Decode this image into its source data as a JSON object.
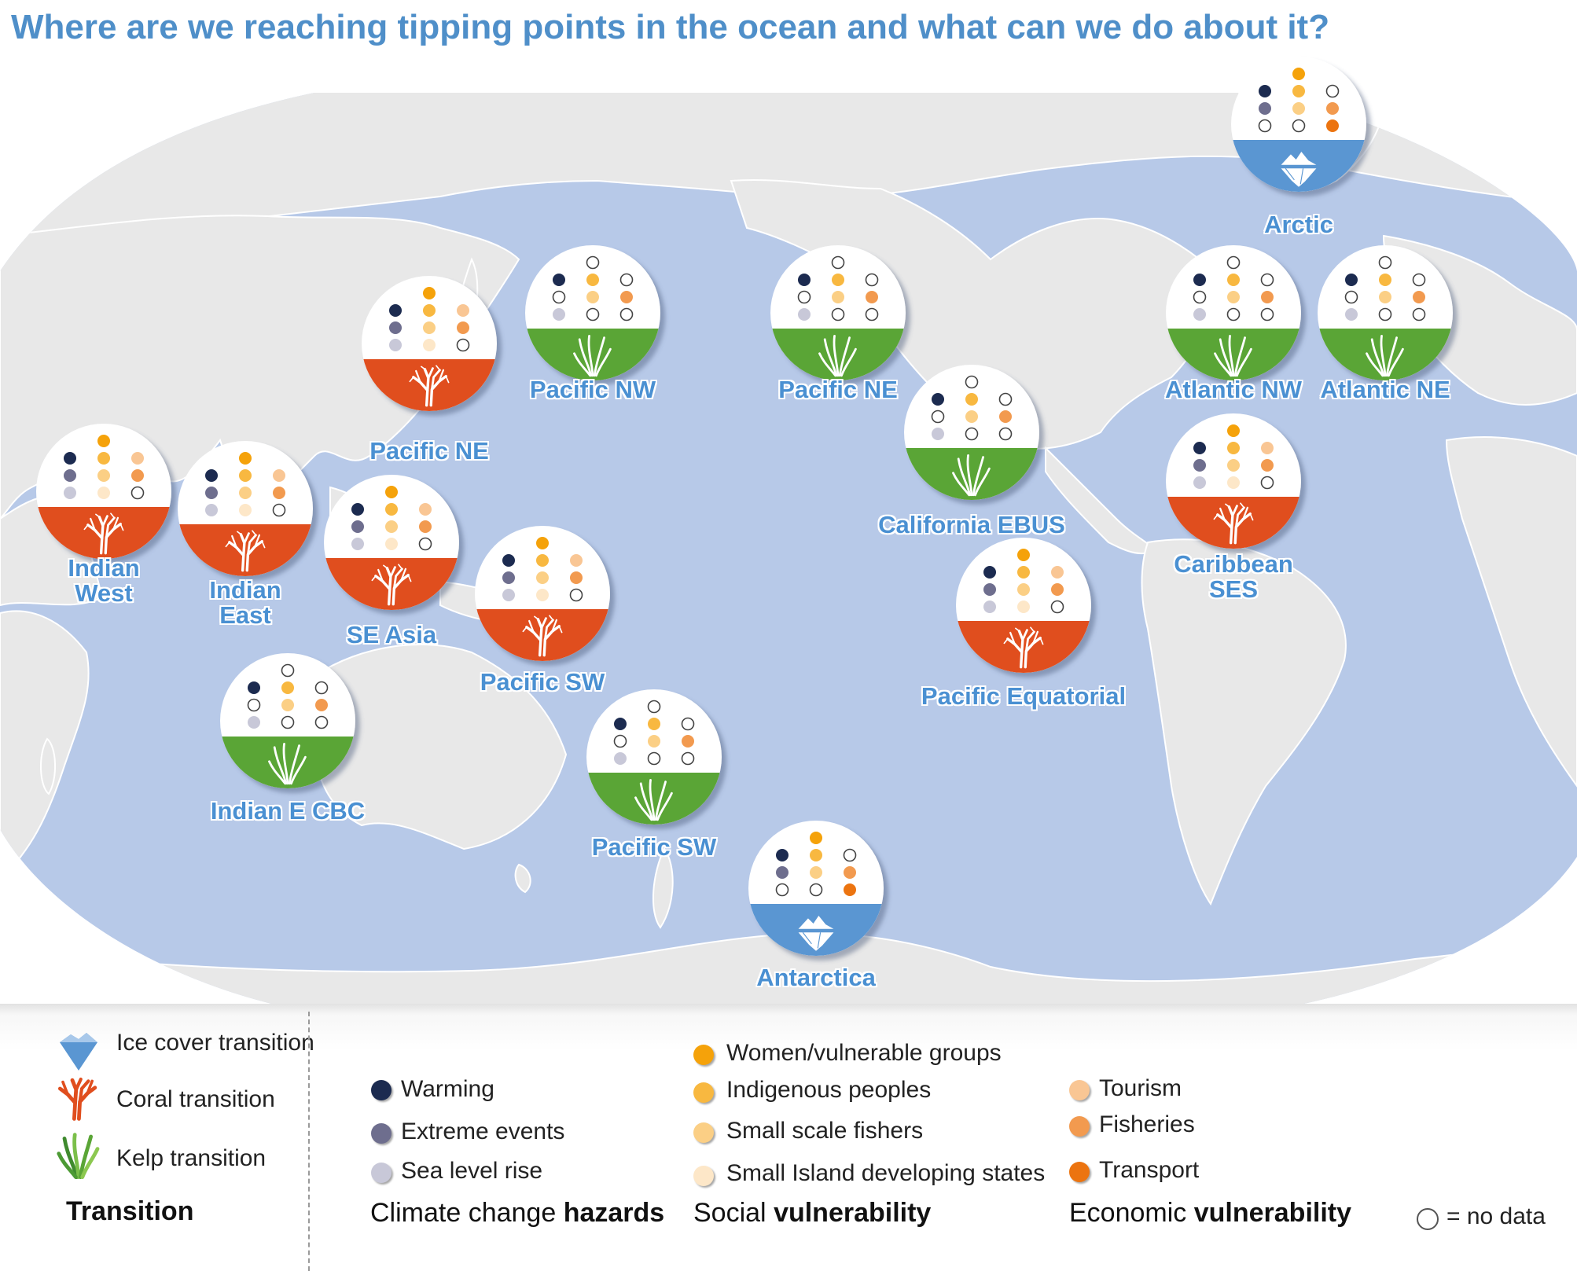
{
  "title": "Where are we reaching tipping points in the ocean and what can we do about it?",
  "colors": {
    "ocean": "#b7c9e8",
    "land": "#e8e8e8",
    "ice": "#5a96d2",
    "coral": "#e04e1e",
    "kelp": "#5aa536",
    "label": "#4a90d2",
    "warming": "#1c2b50",
    "extreme_events": "#6e6e8e",
    "sea_level_rise": "#c8c8d8",
    "women_vulnerable": "#f5a20a",
    "indigenous": "#f8b840",
    "small_scale_fishers": "#fbcf85",
    "sids": "#fde7c8",
    "tourism": "#f9c694",
    "fisheries": "#f29a4f",
    "transport": "#ec7410"
  },
  "regions": [
    {
      "id": "arctic",
      "label": [
        "Arctic"
      ],
      "transition": "ice",
      "indicators": {
        "women": 1,
        "indigenous": 1,
        "fishers": 1,
        "sids": 0,
        "warming": 1,
        "extreme": 1,
        "slr": 0,
        "tourism": 0,
        "fisheries": 1,
        "transport": 1
      }
    },
    {
      "id": "pacific-nw-kelp",
      "label": [
        "Pacific NW"
      ],
      "transition": "kelp",
      "indicators": {
        "women": 0,
        "indigenous": 1,
        "fishers": 1,
        "sids": 0,
        "warming": 1,
        "extreme": 0,
        "slr": 1,
        "tourism": 0,
        "fisheries": 1,
        "transport": 0
      }
    },
    {
      "id": "pacific-ne-kelp",
      "label": [
        "Pacific NE"
      ],
      "transition": "kelp",
      "indicators": {
        "women": 0,
        "indigenous": 1,
        "fishers": 1,
        "sids": 0,
        "warming": 1,
        "extreme": 0,
        "slr": 1,
        "tourism": 0,
        "fisheries": 1,
        "transport": 0
      }
    },
    {
      "id": "atlantic-nw",
      "label": [
        "Atlantic NW"
      ],
      "transition": "kelp",
      "indicators": {
        "women": 0,
        "indigenous": 1,
        "fishers": 1,
        "sids": 0,
        "warming": 1,
        "extreme": 0,
        "slr": 1,
        "tourism": 0,
        "fisheries": 1,
        "transport": 0
      }
    },
    {
      "id": "atlantic-ne",
      "label": [
        "Atlantic NE"
      ],
      "transition": "kelp",
      "indicators": {
        "women": 0,
        "indigenous": 1,
        "fishers": 1,
        "sids": 0,
        "warming": 1,
        "extreme": 0,
        "slr": 1,
        "tourism": 0,
        "fisheries": 1,
        "transport": 0
      }
    },
    {
      "id": "pacific-ne-coral",
      "label": [
        "Pacific NE"
      ],
      "transition": "coral",
      "indicators": {
        "women": 1,
        "indigenous": 1,
        "fishers": 1,
        "sids": 1,
        "warming": 1,
        "extreme": 1,
        "slr": 1,
        "tourism": 1,
        "fisheries": 1,
        "transport": 0
      }
    },
    {
      "id": "california-ebus",
      "label": [
        "California EBUS"
      ],
      "transition": "kelp",
      "indicators": {
        "women": 0,
        "indigenous": 1,
        "fishers": 1,
        "sids": 0,
        "warming": 1,
        "extreme": 0,
        "slr": 1,
        "tourism": 0,
        "fisheries": 1,
        "transport": 0
      }
    },
    {
      "id": "caribbean-ses",
      "label": [
        "Caribbean",
        "SES"
      ],
      "transition": "coral",
      "indicators": {
        "women": 1,
        "indigenous": 1,
        "fishers": 1,
        "sids": 1,
        "warming": 1,
        "extreme": 1,
        "slr": 1,
        "tourism": 1,
        "fisheries": 1,
        "transport": 0
      }
    },
    {
      "id": "indian-west",
      "label": [
        "Indian",
        "West"
      ],
      "transition": "coral",
      "indicators": {
        "women": 1,
        "indigenous": 1,
        "fishers": 1,
        "sids": 1,
        "warming": 1,
        "extreme": 1,
        "slr": 1,
        "tourism": 1,
        "fisheries": 1,
        "transport": 0
      }
    },
    {
      "id": "indian-east",
      "label": [
        "Indian",
        "East"
      ],
      "transition": "coral",
      "indicators": {
        "women": 1,
        "indigenous": 1,
        "fishers": 1,
        "sids": 1,
        "warming": 1,
        "extreme": 1,
        "slr": 1,
        "tourism": 1,
        "fisheries": 1,
        "transport": 0
      }
    },
    {
      "id": "se-asia",
      "label": [
        "SE Asia"
      ],
      "transition": "coral",
      "indicators": {
        "women": 1,
        "indigenous": 1,
        "fishers": 1,
        "sids": 1,
        "warming": 1,
        "extreme": 1,
        "slr": 1,
        "tourism": 1,
        "fisheries": 1,
        "transport": 0
      }
    },
    {
      "id": "pacific-sw-coral",
      "label": [
        "Pacific SW"
      ],
      "transition": "coral",
      "indicators": {
        "women": 1,
        "indigenous": 1,
        "fishers": 1,
        "sids": 1,
        "warming": 1,
        "extreme": 1,
        "slr": 1,
        "tourism": 1,
        "fisheries": 1,
        "transport": 0
      }
    },
    {
      "id": "pacific-equatorial",
      "label": [
        "Pacific Equatorial"
      ],
      "transition": "coral",
      "indicators": {
        "women": 1,
        "indigenous": 1,
        "fishers": 1,
        "sids": 1,
        "warming": 1,
        "extreme": 1,
        "slr": 1,
        "tourism": 1,
        "fisheries": 1,
        "transport": 0
      }
    },
    {
      "id": "indian-e-cbc",
      "label": [
        "Indian E CBC"
      ],
      "transition": "kelp",
      "indicators": {
        "women": 0,
        "indigenous": 1,
        "fishers": 1,
        "sids": 0,
        "warming": 1,
        "extreme": 0,
        "slr": 1,
        "tourism": 0,
        "fisheries": 1,
        "transport": 0
      }
    },
    {
      "id": "pacific-sw-kelp",
      "label": [
        "Pacific SW"
      ],
      "transition": "kelp",
      "indicators": {
        "women": 0,
        "indigenous": 1,
        "fishers": 1,
        "sids": 0,
        "warming": 1,
        "extreme": 0,
        "slr": 1,
        "tourism": 0,
        "fisheries": 1,
        "transport": 0
      }
    },
    {
      "id": "antarctica",
      "label": [
        "Antarctica"
      ],
      "transition": "ice",
      "indicators": {
        "women": 1,
        "indigenous": 1,
        "fishers": 1,
        "sids": 0,
        "warming": 1,
        "extreme": 1,
        "slr": 0,
        "tourism": 0,
        "fisheries": 1,
        "transport": 1
      }
    }
  ],
  "legend": {
    "transition": {
      "heading": "Transition",
      "ice": "Ice cover transition",
      "coral": "Coral transition",
      "kelp": "Kelp transition"
    },
    "hazards": {
      "heading_plain": "Climate change ",
      "heading_bold": "hazards",
      "warming": "Warming",
      "extreme": "Extreme events",
      "slr": "Sea level rise"
    },
    "social": {
      "heading_plain": "Social ",
      "heading_bold": "vulnerability",
      "women": "Women/vulnerable groups",
      "indigenous": "Indigenous peoples",
      "fishers": "Small scale fishers",
      "sids": "Small Island developing states"
    },
    "economic": {
      "heading_plain": "Economic ",
      "heading_bold": "vulnerability",
      "tourism": "Tourism",
      "fisheries": "Fisheries",
      "transport": "Transport"
    },
    "no_data": "= no data"
  }
}
